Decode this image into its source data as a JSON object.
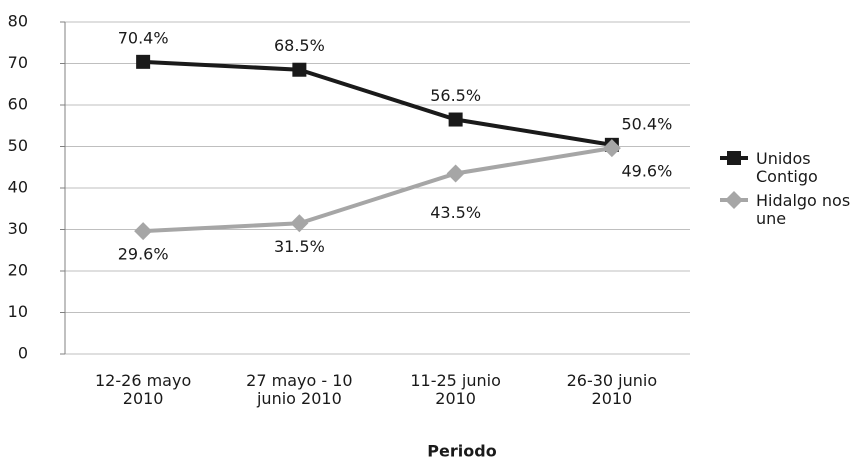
{
  "chart_data": {
    "type": "line",
    "x_label": "Periodo",
    "categories": [
      "12-26 mayo\n2010",
      "27 mayo - 10\njunio 2010",
      "11-25 junio\n2010",
      "26-30 junio\n2010"
    ],
    "series": [
      {
        "name": "Unidos\nContigo",
        "color": "#1a1a1a",
        "marker": "square",
        "values": [
          70.4,
          68.5,
          56.5,
          50.4
        ],
        "value_labels": [
          "70.4%",
          "68.5%",
          "56.5%",
          "50.4%"
        ]
      },
      {
        "name": "Hidalgo nos\nune",
        "color": "#a6a6a6",
        "marker": "diamond",
        "values": [
          29.6,
          31.5,
          43.5,
          49.6
        ],
        "value_labels": [
          "29.6%",
          "31.5%",
          "43.5%",
          "49.6%"
        ]
      }
    ],
    "ylim": [
      0,
      80
    ],
    "yticks": [
      0,
      10,
      20,
      30,
      40,
      50,
      60,
      70,
      80
    ],
    "grid": true,
    "legend": "right"
  }
}
